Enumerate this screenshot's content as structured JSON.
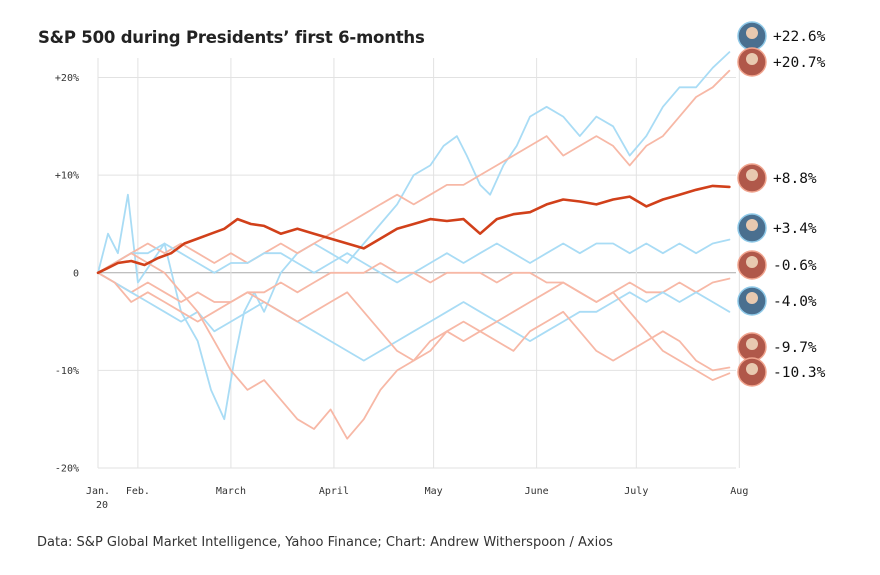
{
  "chart_data": {
    "type": "line",
    "title": "S&P 500 during Presidents’ first 6-months",
    "source": "Data: S&P Global Market Intelligence, Yahoo Finance; Chart: Andrew Witherspoon / Axios",
    "xlabel": "",
    "ylabel": "",
    "x_domain": [
      0,
      192
    ],
    "ylim": [
      -20,
      22
    ],
    "y_ticks": [
      {
        "value": 20,
        "label": "+20%"
      },
      {
        "value": 10,
        "label": "+10%"
      },
      {
        "value": 0,
        "label": "0"
      },
      {
        "value": -10,
        "label": "-10%"
      },
      {
        "value": -20,
        "label": "-20%"
      }
    ],
    "x_ticks": [
      {
        "value": 0,
        "label": "Jan.",
        "label2": "20"
      },
      {
        "value": 12,
        "label": "Feb.",
        "label2": ""
      },
      {
        "value": 40,
        "label": "March",
        "label2": ""
      },
      {
        "value": 71,
        "label": "April",
        "label2": ""
      },
      {
        "value": 101,
        "label": "May",
        "label2": ""
      },
      {
        "value": 132,
        "label": "June",
        "label2": ""
      },
      {
        "value": 162,
        "label": "July",
        "label2": ""
      },
      {
        "value": 193,
        "label": "Aug",
        "label2": ""
      }
    ],
    "grid": true,
    "colors": {
      "democrat": "#a9dcf5",
      "republican": "#f7b8a6",
      "highlight": "#d1401a",
      "grid": "#e2e2e2",
      "zero": "#aaaaaa"
    },
    "series": [
      {
        "party": "democrat",
        "highlight": false,
        "end_label": "+22.6%",
        "end_value": 22.6,
        "x": [
          0,
          3,
          6,
          9,
          12,
          16,
          20,
          25,
          30,
          34,
          38,
          41,
          44,
          47,
          50,
          55,
          60,
          65,
          70,
          75,
          80,
          85,
          90,
          95,
          100,
          104,
          108,
          111,
          115,
          118,
          122,
          126,
          130,
          135,
          140,
          145,
          150,
          155,
          160,
          165,
          170,
          175,
          180,
          185,
          190
        ],
        "y": [
          0,
          4,
          2,
          8,
          -1,
          1,
          3,
          -4,
          -7,
          -12,
          -15,
          -9,
          -4,
          -2,
          -4,
          0,
          2,
          3,
          2,
          1,
          3,
          5,
          7,
          10,
          11,
          13,
          14,
          12,
          9,
          8,
          11,
          13,
          16,
          17,
          16,
          14,
          16,
          15,
          12,
          14,
          17,
          19,
          19,
          21,
          22.6
        ]
      },
      {
        "party": "republican",
        "highlight": false,
        "end_label": "+20.7%",
        "end_value": 20.7,
        "x": [
          0,
          5,
          10,
          15,
          20,
          25,
          30,
          35,
          40,
          45,
          50,
          55,
          60,
          65,
          70,
          75,
          80,
          85,
          90,
          95,
          100,
          105,
          110,
          115,
          120,
          125,
          130,
          135,
          140,
          145,
          150,
          155,
          160,
          165,
          170,
          175,
          180,
          185,
          190
        ],
        "y": [
          0,
          1,
          2,
          3,
          2,
          3,
          2,
          1,
          2,
          1,
          2,
          3,
          2,
          3,
          4,
          5,
          6,
          7,
          8,
          7,
          8,
          9,
          9,
          10,
          11,
          12,
          13,
          14,
          12,
          13,
          14,
          13,
          11,
          13,
          14,
          16,
          18,
          19,
          20.7
        ]
      },
      {
        "party": "republican",
        "highlight": true,
        "end_label": "+8.8%",
        "end_value": 8.8,
        "x": [
          0,
          3,
          6,
          10,
          14,
          18,
          22,
          26,
          30,
          34,
          38,
          42,
          46,
          50,
          55,
          60,
          65,
          70,
          75,
          80,
          85,
          90,
          95,
          100,
          105,
          110,
          115,
          120,
          125,
          130,
          135,
          140,
          145,
          150,
          155,
          160,
          165,
          170,
          175,
          180,
          185,
          190
        ],
        "y": [
          0,
          0.5,
          1,
          1.2,
          0.8,
          1.5,
          2,
          3,
          3.5,
          4,
          4.5,
          5.5,
          5,
          4.8,
          4,
          4.5,
          4,
          3.5,
          3,
          2.5,
          3.5,
          4.5,
          5,
          5.5,
          5.3,
          5.5,
          4,
          5.5,
          6,
          6.2,
          7,
          7.5,
          7.3,
          7,
          7.5,
          7.8,
          6.8,
          7.5,
          8,
          8.5,
          8.9,
          8.8
        ]
      },
      {
        "party": "democrat",
        "highlight": false,
        "end_label": "+3.4%",
        "end_value": 3.4,
        "x": [
          0,
          5,
          10,
          15,
          20,
          25,
          30,
          35,
          40,
          45,
          50,
          55,
          60,
          65,
          70,
          75,
          80,
          85,
          90,
          95,
          100,
          105,
          110,
          115,
          120,
          125,
          130,
          135,
          140,
          145,
          150,
          155,
          160,
          165,
          170,
          175,
          180,
          185,
          190
        ],
        "y": [
          0,
          1,
          2,
          2,
          3,
          2,
          1,
          0,
          1,
          1,
          2,
          2,
          1,
          0,
          1,
          2,
          1,
          0,
          -1,
          0,
          1,
          2,
          1,
          2,
          3,
          2,
          1,
          2,
          3,
          2,
          3,
          3,
          2,
          3,
          2,
          3,
          2,
          3,
          3.4
        ]
      },
      {
        "party": "republican",
        "highlight": false,
        "end_label": "-0.6%",
        "end_value": -0.6,
        "x": [
          0,
          5,
          10,
          15,
          20,
          25,
          30,
          35,
          40,
          45,
          50,
          55,
          60,
          65,
          70,
          75,
          80,
          85,
          90,
          95,
          100,
          105,
          110,
          115,
          120,
          125,
          130,
          135,
          140,
          145,
          150,
          155,
          160,
          165,
          170,
          175,
          180,
          185,
          190
        ],
        "y": [
          0,
          -1,
          -2,
          -1,
          -2,
          -3,
          -2,
          -3,
          -3,
          -2,
          -2,
          -1,
          -2,
          -1,
          0,
          0,
          0,
          1,
          0,
          0,
          -1,
          0,
          0,
          0,
          -1,
          0,
          0,
          -1,
          -1,
          -2,
          -3,
          -2,
          -1,
          -2,
          -2,
          -1,
          -2,
          -1,
          -0.6
        ]
      },
      {
        "party": "democrat",
        "highlight": false,
        "end_label": "-4.0%",
        "end_value": -4,
        "x": [
          0,
          5,
          10,
          15,
          20,
          25,
          30,
          35,
          40,
          45,
          50,
          55,
          60,
          65,
          70,
          75,
          80,
          85,
          90,
          95,
          100,
          105,
          110,
          115,
          120,
          125,
          130,
          135,
          140,
          145,
          150,
          155,
          160,
          165,
          170,
          175,
          180,
          185,
          190
        ],
        "y": [
          0,
          -1,
          -2,
          -3,
          -4,
          -5,
          -4,
          -6,
          -5,
          -4,
          -3,
          -4,
          -5,
          -6,
          -7,
          -8,
          -9,
          -8,
          -7,
          -6,
          -5,
          -4,
          -3,
          -4,
          -5,
          -6,
          -7,
          -6,
          -5,
          -4,
          -4,
          -3,
          -2,
          -3,
          -2,
          -3,
          -2,
          -3,
          -4
        ]
      },
      {
        "party": "republican",
        "highlight": false,
        "end_label": "-9.7%",
        "end_value": -9.7,
        "x": [
          0,
          5,
          10,
          15,
          20,
          25,
          30,
          35,
          40,
          45,
          50,
          55,
          60,
          65,
          70,
          75,
          80,
          85,
          90,
          95,
          100,
          105,
          110,
          115,
          120,
          125,
          130,
          135,
          140,
          145,
          150,
          155,
          160,
          165,
          170,
          175,
          180,
          185,
          190
        ],
        "y": [
          0,
          -1,
          -3,
          -2,
          -3,
          -4,
          -5,
          -4,
          -3,
          -2,
          -3,
          -4,
          -5,
          -4,
          -3,
          -2,
          -4,
          -6,
          -8,
          -9,
          -7,
          -6,
          -5,
          -6,
          -7,
          -8,
          -6,
          -5,
          -4,
          -6,
          -8,
          -9,
          -8,
          -7,
          -6,
          -7,
          -9,
          -10,
          -9.7
        ]
      },
      {
        "party": "republican",
        "highlight": false,
        "end_label": "-10.3%",
        "end_value": -10.3,
        "x": [
          0,
          5,
          10,
          15,
          20,
          25,
          30,
          35,
          40,
          45,
          50,
          55,
          60,
          65,
          70,
          75,
          80,
          85,
          90,
          95,
          100,
          105,
          110,
          115,
          120,
          125,
          130,
          135,
          140,
          145,
          150,
          155,
          160,
          165,
          170,
          175,
          180,
          185,
          190
        ],
        "y": [
          0,
          1,
          2,
          1,
          0,
          -2,
          -4,
          -7,
          -10,
          -12,
          -11,
          -13,
          -15,
          -16,
          -14,
          -17,
          -15,
          -12,
          -10,
          -9,
          -8,
          -6,
          -7,
          -6,
          -5,
          -4,
          -3,
          -2,
          -1,
          -2,
          -3,
          -2,
          -4,
          -6,
          -8,
          -9,
          -10,
          -11,
          -10.3
        ]
      }
    ]
  }
}
